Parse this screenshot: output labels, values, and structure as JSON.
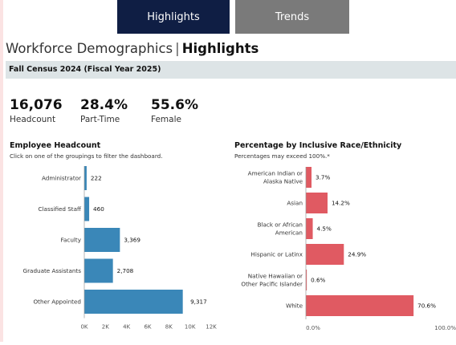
{
  "tabs": [
    {
      "label": "Highlights",
      "active": true
    },
    {
      "label": "Trends",
      "active": false
    }
  ],
  "title": {
    "prefix": "Workforce Demographics",
    "separator": "|",
    "emphasis": "Highlights"
  },
  "banner": "Fall Census 2024 (Fiscal Year 2025)",
  "kpis": [
    {
      "value": "16,076",
      "label": "Headcount"
    },
    {
      "value": "28.4%",
      "label": "Part-Time"
    },
    {
      "value": "55.6%",
      "label": "Female"
    }
  ],
  "headcount": {
    "title": "Employee Headcount",
    "subtitle": "Click on one of the groupings to filter the dashboard."
  },
  "race": {
    "title": "Percentage by Inclusive Race/Ethnicity",
    "subtitle": "Percentages may exceed 100%.*"
  },
  "chart_data": [
    {
      "type": "bar",
      "orientation": "horizontal",
      "title": "Employee Headcount",
      "categories": [
        "Administrator",
        "Classified Staff",
        "Faculty",
        "Graduate Assistants",
        "Other Appointed"
      ],
      "values": [
        222,
        460,
        3369,
        2708,
        9317
      ],
      "value_labels": [
        "222",
        "460",
        "3,369",
        "2,708",
        "9,317"
      ],
      "xlim": [
        0,
        12000
      ],
      "xticks": [
        "0K",
        "2K",
        "4K",
        "6K",
        "8K",
        "10K",
        "12K"
      ],
      "color": "#3a87b8",
      "grid": false
    },
    {
      "type": "bar",
      "orientation": "horizontal",
      "title": "Percentage by Inclusive Race/Ethnicity",
      "categories": [
        [
          "American Indian or",
          "Alaska Native"
        ],
        [
          "Asian"
        ],
        [
          "Black or African",
          "American"
        ],
        [
          "Hispanic or Latinx"
        ],
        [
          "Native Hawaiian or",
          "Other Pacific Islander"
        ],
        [
          "White"
        ]
      ],
      "values": [
        3.7,
        14.2,
        4.5,
        24.9,
        0.6,
        70.6
      ],
      "value_labels": [
        "3.7%",
        "14.2%",
        "4.5%",
        "24.9%",
        "0.6%",
        "70.6%"
      ],
      "xlim": [
        0,
        100
      ],
      "xticks": [
        "0.0%",
        "100.0%"
      ],
      "color": "#e05a62",
      "grid": false
    }
  ]
}
